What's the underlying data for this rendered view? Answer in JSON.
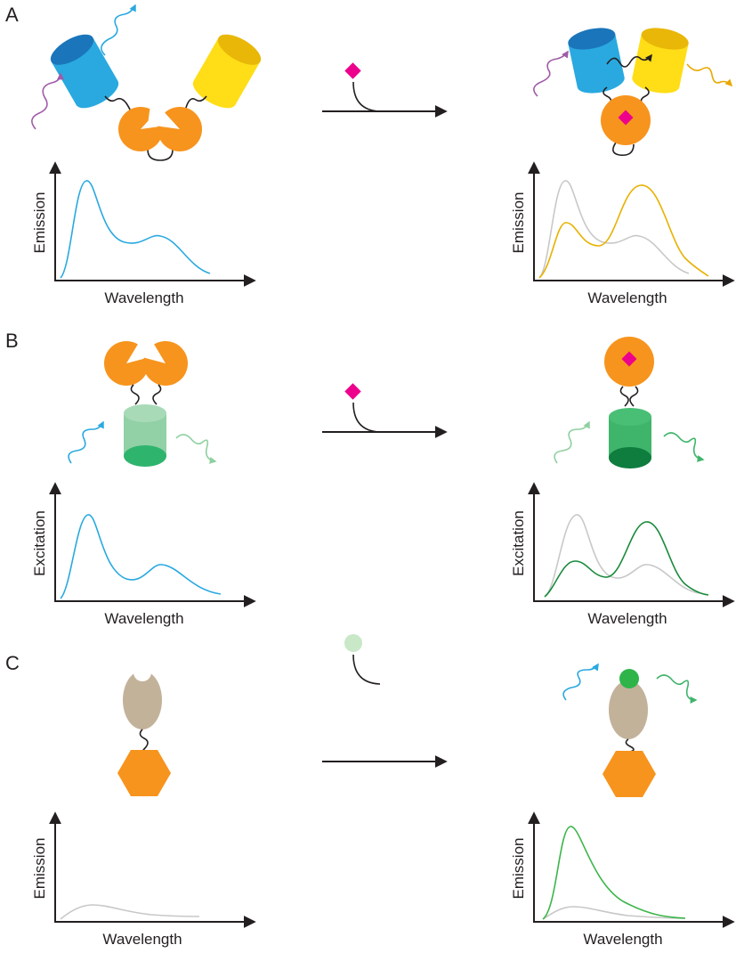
{
  "panels": [
    {
      "label": "A",
      "left": {
        "ylabel": "Emission",
        "xlabel": "Wavelength"
      },
      "right": {
        "ylabel": "Emission",
        "xlabel": "Wavelength"
      }
    },
    {
      "label": "B",
      "left": {
        "ylabel": "Excitation",
        "xlabel": "Wavelength"
      },
      "right": {
        "ylabel": "Excitation",
        "xlabel": "Wavelength"
      }
    },
    {
      "label": "C",
      "left": {
        "ylabel": "Emission",
        "xlabel": "Wavelength"
      },
      "right": {
        "ylabel": "Emission",
        "xlabel": "Wavelength"
      }
    }
  ]
}
